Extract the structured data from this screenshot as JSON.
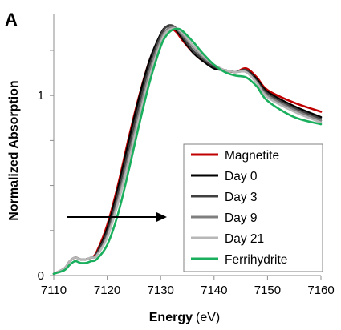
{
  "chart_data": {
    "type": "line",
    "panel_label": "A",
    "xlabel": "Energy",
    "xunit": "(eV)",
    "ylabel": "Normalized Absorption",
    "xlim": [
      7110,
      7160
    ],
    "ylim": [
      0,
      1.45
    ],
    "xticks": [
      "7110",
      "7120",
      "7130",
      "7140",
      "7150",
      "7160"
    ],
    "yticks": [
      "0",
      "1"
    ],
    "ytick_values": [
      0,
      1
    ],
    "legend_position": "right",
    "annotation": "arrow pointing to increasing energy",
    "series": [
      {
        "name": "Magnetite",
        "color": "#c00000",
        "x": [
          7110,
          7112,
          7113,
          7114,
          7115,
          7116,
          7117,
          7118,
          7120,
          7122,
          7124,
          7126,
          7128,
          7130,
          7131,
          7132,
          7133,
          7134,
          7136,
          7138,
          7140,
          7142,
          7144,
          7146,
          7148,
          7150,
          7155,
          7160
        ],
        "y": [
          0.01,
          0.04,
          0.08,
          0.1,
          0.09,
          0.09,
          0.1,
          0.13,
          0.28,
          0.5,
          0.76,
          1.0,
          1.2,
          1.33,
          1.36,
          1.37,
          1.35,
          1.31,
          1.24,
          1.19,
          1.16,
          1.14,
          1.13,
          1.15,
          1.1,
          1.03,
          0.96,
          0.91
        ]
      },
      {
        "name": "Day 0",
        "color": "#000000",
        "x": [
          7110,
          7112,
          7113,
          7114,
          7115,
          7116,
          7117,
          7118,
          7120,
          7122,
          7124,
          7126,
          7128,
          7130,
          7131,
          7132,
          7133,
          7134,
          7136,
          7138,
          7140,
          7142,
          7144,
          7146,
          7148,
          7150,
          7155,
          7160
        ],
        "y": [
          0.01,
          0.04,
          0.08,
          0.1,
          0.09,
          0.09,
          0.1,
          0.12,
          0.26,
          0.48,
          0.74,
          0.99,
          1.2,
          1.34,
          1.38,
          1.38,
          1.36,
          1.32,
          1.24,
          1.19,
          1.15,
          1.14,
          1.13,
          1.14,
          1.09,
          1.02,
          0.94,
          0.88
        ]
      },
      {
        "name": "Day 3",
        "color": "#404040",
        "x": [
          7110,
          7112,
          7113,
          7114,
          7115,
          7116,
          7117,
          7118,
          7120,
          7122,
          7124,
          7126,
          7128,
          7130,
          7131,
          7132,
          7133,
          7134,
          7136,
          7138,
          7140,
          7142,
          7144,
          7146,
          7148,
          7150,
          7155,
          7160
        ],
        "y": [
          0.01,
          0.04,
          0.08,
          0.1,
          0.09,
          0.09,
          0.1,
          0.12,
          0.24,
          0.45,
          0.7,
          0.95,
          1.17,
          1.33,
          1.38,
          1.39,
          1.37,
          1.33,
          1.25,
          1.2,
          1.16,
          1.14,
          1.13,
          1.14,
          1.08,
          1.01,
          0.93,
          0.87
        ]
      },
      {
        "name": "Day 9",
        "color": "#7f7f7f",
        "x": [
          7110,
          7112,
          7113,
          7114,
          7115,
          7116,
          7117,
          7118,
          7120,
          7122,
          7124,
          7126,
          7128,
          7130,
          7131,
          7132,
          7133,
          7134,
          7136,
          7138,
          7140,
          7142,
          7144,
          7146,
          7148,
          7150,
          7155,
          7160
        ],
        "y": [
          0.01,
          0.04,
          0.08,
          0.1,
          0.09,
          0.09,
          0.1,
          0.11,
          0.22,
          0.42,
          0.66,
          0.91,
          1.14,
          1.31,
          1.36,
          1.38,
          1.37,
          1.34,
          1.27,
          1.21,
          1.17,
          1.14,
          1.13,
          1.13,
          1.07,
          1.0,
          0.92,
          0.86
        ]
      },
      {
        "name": "Day 21",
        "color": "#b7b7b7",
        "x": [
          7110,
          7112,
          7113,
          7114,
          7115,
          7116,
          7117,
          7118,
          7120,
          7122,
          7124,
          7126,
          7128,
          7130,
          7131,
          7132,
          7133,
          7134,
          7136,
          7138,
          7140,
          7142,
          7144,
          7146,
          7148,
          7150,
          7155,
          7160
        ],
        "y": [
          0.01,
          0.04,
          0.08,
          0.1,
          0.09,
          0.09,
          0.1,
          0.11,
          0.21,
          0.4,
          0.63,
          0.88,
          1.11,
          1.29,
          1.35,
          1.37,
          1.37,
          1.35,
          1.28,
          1.22,
          1.17,
          1.14,
          1.13,
          1.13,
          1.07,
          0.99,
          0.91,
          0.85
        ]
      },
      {
        "name": "Ferrihydrite",
        "color": "#1aaf5d",
        "x": [
          7110,
          7112,
          7113,
          7114,
          7115,
          7116,
          7117,
          7118,
          7120,
          7122,
          7124,
          7126,
          7128,
          7130,
          7131,
          7132,
          7133,
          7134,
          7136,
          7138,
          7140,
          7142,
          7144,
          7146,
          7148,
          7150,
          7155,
          7160
        ],
        "y": [
          0.01,
          0.03,
          0.06,
          0.08,
          0.07,
          0.07,
          0.08,
          0.09,
          0.17,
          0.34,
          0.58,
          0.84,
          1.08,
          1.27,
          1.33,
          1.36,
          1.37,
          1.36,
          1.3,
          1.23,
          1.17,
          1.13,
          1.11,
          1.1,
          1.05,
          0.97,
          0.88,
          0.84
        ]
      }
    ]
  }
}
